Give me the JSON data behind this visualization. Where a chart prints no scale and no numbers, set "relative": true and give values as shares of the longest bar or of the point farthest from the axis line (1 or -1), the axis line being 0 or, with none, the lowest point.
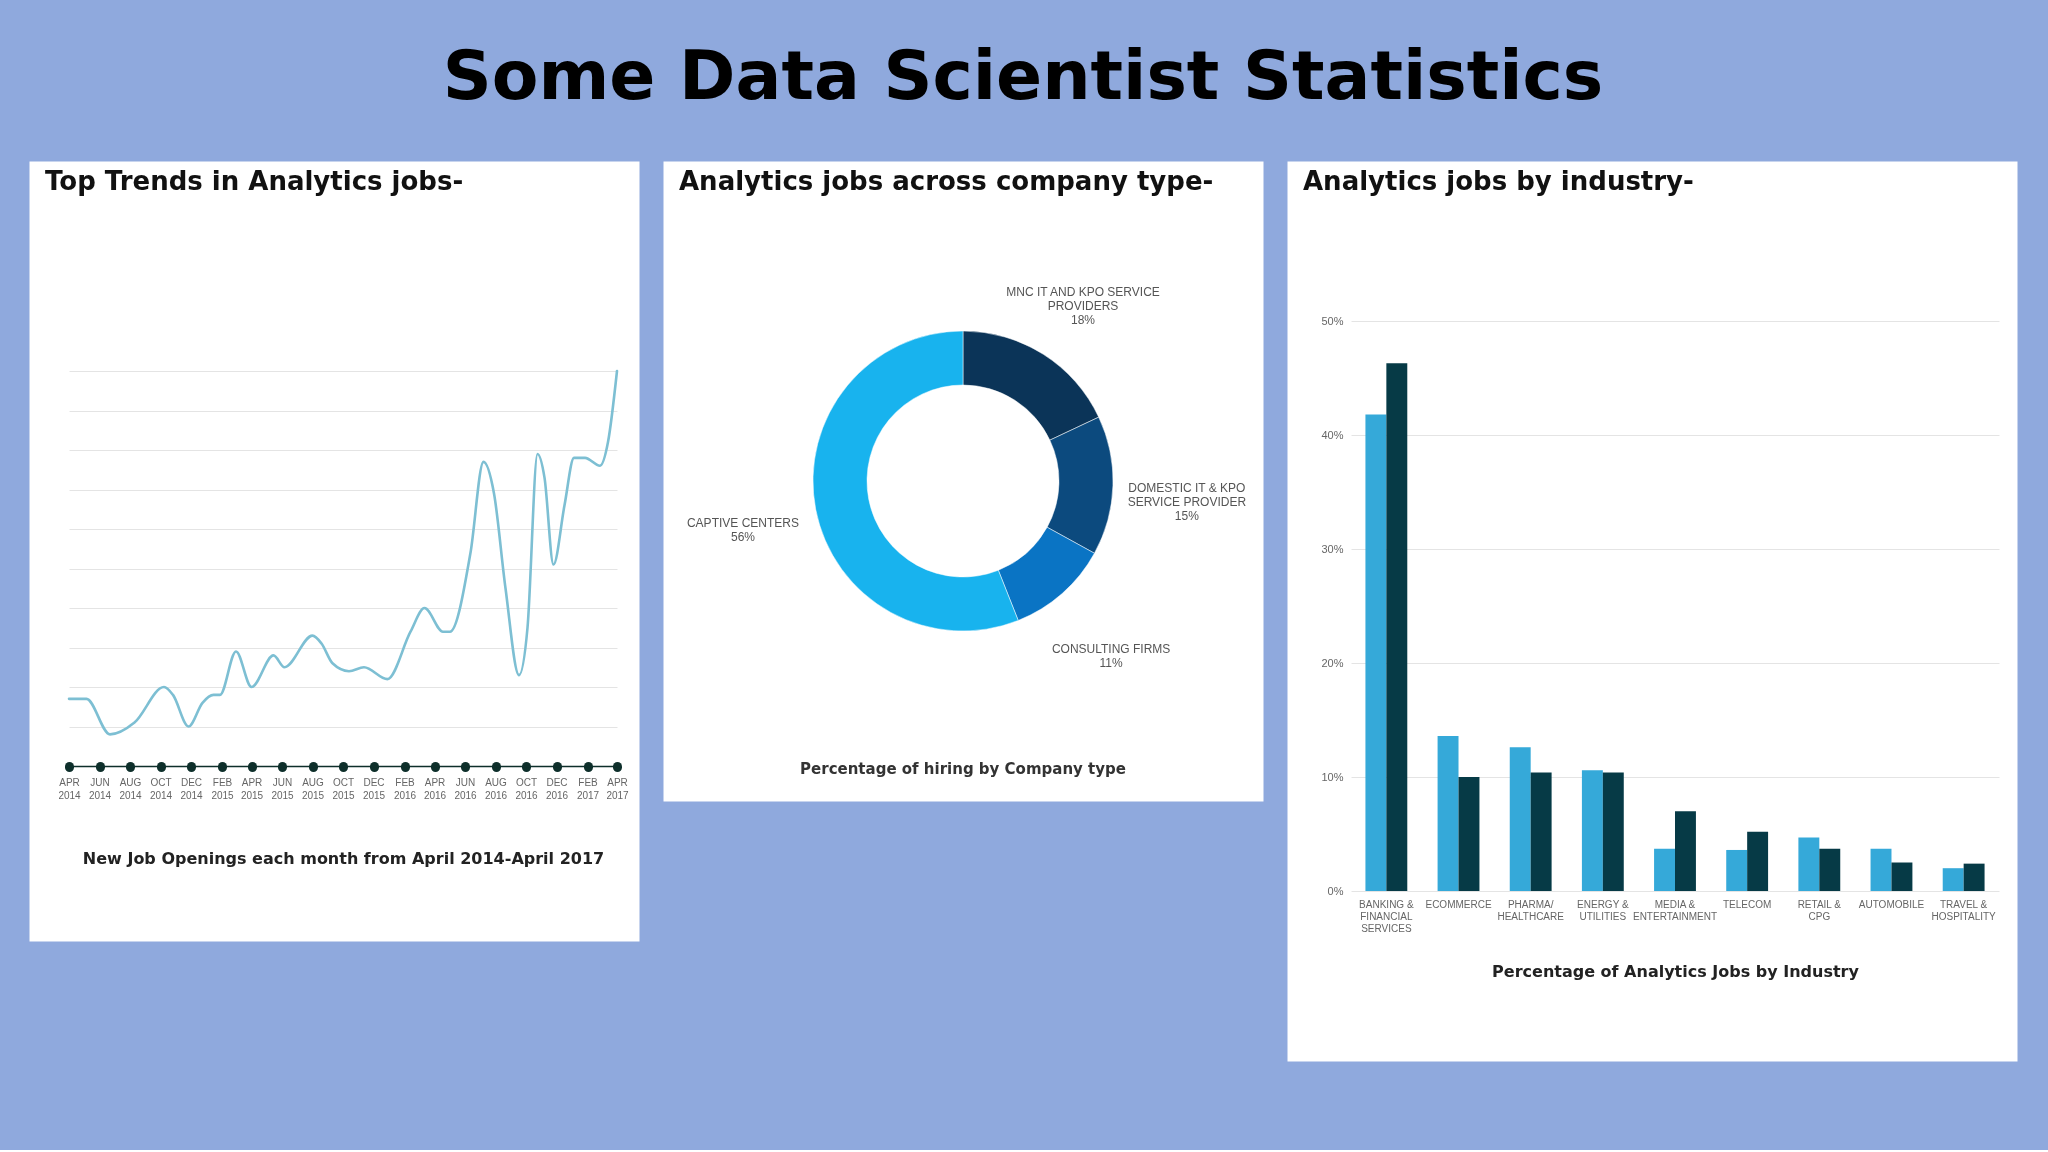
{
  "chart_data": [
    {
      "type": "other",
      "title": "Some Data Scientist Statistics"
    },
    {
      "type": "line",
      "title": "Top Trends in Analytics jobs-",
      "xlabel": "New Job Openings each month from April 2014-April 2017",
      "relative": true,
      "grid": "y",
      "x": [
        "2014-04-01",
        "2014-05-06",
        "2014-06-22",
        "2014-08-10",
        "2014-10-08",
        "2014-10-26",
        "2014-11-26",
        "2014-12-24",
        "2015-01-15",
        "2015-01-28",
        "2015-03-01",
        "2015-04-01",
        "2015-05-15",
        "2015-06-06",
        "2015-08-01",
        "2015-08-19",
        "2015-09-10",
        "2015-10-13",
        "2015-11-12",
        "2015-12-29",
        "2016-02-13",
        "2016-03-12",
        "2016-04-18",
        "2016-05-02",
        "2016-06-12",
        "2016-07-08",
        "2016-07-29",
        "2016-08-21",
        "2016-09-17",
        "2016-10-04",
        "2016-10-24",
        "2016-11-07",
        "2016-11-25",
        "2016-12-17",
        "2017-01-05",
        "2017-01-27",
        "2017-02-26",
        "2017-03-14",
        "2017-04-01"
      ],
      "xlim": [
        "2014-04",
        "2017-04"
      ],
      "xticks": [
        {
          "value": "2014-04",
          "label": "APR 2014"
        },
        {
          "value": "2014-06",
          "label": "JUN 2014"
        },
        {
          "value": "2014-08",
          "label": "AUG 2014"
        },
        {
          "value": "2014-10",
          "label": "OCT 2014"
        },
        {
          "value": "2014-12",
          "label": "DEC 2014"
        },
        {
          "value": "2015-02",
          "label": "FEB 2015"
        },
        {
          "value": "2015-04",
          "label": "APR 2015"
        },
        {
          "value": "2015-06",
          "label": "JUN 2015"
        },
        {
          "value": "2015-08",
          "label": "AUG 2015"
        },
        {
          "value": "2015-10",
          "label": "OCT 2015"
        },
        {
          "value": "2015-12",
          "label": "DEC 2015"
        },
        {
          "value": "2016-02",
          "label": "FEB 2016"
        },
        {
          "value": "2016-04",
          "label": "APR 2016"
        },
        {
          "value": "2016-06",
          "label": "JUN 2016"
        },
        {
          "value": "2016-08",
          "label": "AUG 2016"
        },
        {
          "value": "2016-10",
          "label": "OCT 2016"
        },
        {
          "value": "2016-12",
          "label": "DEC 2016"
        },
        {
          "value": "2017-02",
          "label": "FEB 2017"
        },
        {
          "value": "2017-04",
          "label": "APR 2017"
        }
      ],
      "series": [
        {
          "color": "#7dbfd3",
          "values": [
            0.17,
            0.17,
            0.08,
            0.11,
            0.2,
            0.18,
            0.1,
            0.16,
            0.18,
            0.18,
            0.29,
            0.2,
            0.28,
            0.25,
            0.33,
            0.31,
            0.26,
            0.24,
            0.25,
            0.22,
            0.34,
            0.4,
            0.34,
            0.34,
            0.54,
            0.77,
            0.69,
            0.45,
            0.23,
            0.35,
            0.79,
            0.73,
            0.51,
            0.66,
            0.78,
            0.78,
            0.76,
            0.82,
            1.0
          ]
        }
      ]
    },
    {
      "type": "donut",
      "title": "Analytics jobs across company type-",
      "categories": [
        "MNC IT AND KPO SERVICE PROVIDERS",
        "DOMESTIC IT & KPO SERVICE PROVIDER",
        "CONSULTING FIRMS",
        "CAPTIVE CENTERS"
      ],
      "values": [
        18,
        15,
        11,
        56
      ],
      "value_labels": [
        "18%",
        "15%",
        "11%",
        "56%"
      ],
      "colors": [
        "#0b3458",
        "#0c4a7e",
        "#0a74c4",
        "#18b3ee"
      ],
      "annotations": [
        "Percentage of hiring by Company type"
      ]
    },
    {
      "type": "bar",
      "title": "Analytics jobs by industry-",
      "xlabel": "Percentage of Analytics Jobs by Industry",
      "grid": "y",
      "categories": [
        "BANKING & FINANCIAL SERVICES",
        "ECOMMERCE",
        "PHARMA/ HEALTHCARE",
        "ENERGY & UTILITIES",
        "MEDIA & ENTERTAINMENT",
        "TELECOM",
        "RETAIL & CPG",
        "AUTOMOBILE",
        "TRAVEL & HOSPITALITY"
      ],
      "series": [
        {
          "color": "#35a9d9",
          "values": [
            41.8,
            13.6,
            12.6,
            10.6,
            3.7,
            3.6,
            4.7,
            3.7,
            2.0
          ]
        },
        {
          "color": "#063a46",
          "values": [
            46.3,
            10.0,
            10.4,
            10.4,
            7.0,
            5.2,
            3.7,
            2.5,
            2.4
          ]
        }
      ],
      "ylim": [
        0,
        50
      ],
      "yticks": [
        {
          "value": 0,
          "label": "0%"
        },
        {
          "value": 10,
          "label": "10%"
        },
        {
          "value": 20,
          "label": "20%"
        },
        {
          "value": 30,
          "label": "30%"
        },
        {
          "value": 40,
          "label": "40%"
        },
        {
          "value": 50,
          "label": "50%"
        }
      ]
    }
  ]
}
